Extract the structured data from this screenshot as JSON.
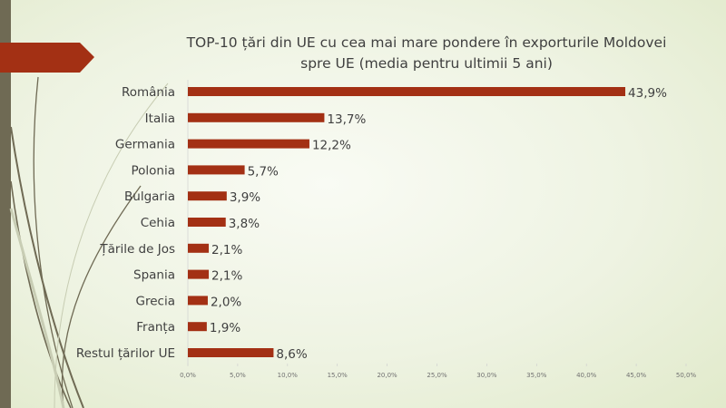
{
  "chart_data": {
    "type": "bar",
    "orientation": "horizontal",
    "title": "TOP-10 țări din UE cu cea mai mare pondere în exporturile Moldovei spre UE (media pentru ultimii 5 ani)",
    "title_lines": [
      "TOP-10 țări din UE cu cea mai mare pondere în exporturile Moldovei",
      "spre UE (media pentru ultimii 5 ani)"
    ],
    "categories": [
      "România",
      "Italia",
      "Germania",
      "Polonia",
      "Bulgaria",
      "Cehia",
      "Țările de Jos",
      "Spania",
      "Grecia",
      "Franța",
      "Restul țărilor UE"
    ],
    "values": [
      43.9,
      13.7,
      12.2,
      5.7,
      3.9,
      3.8,
      2.1,
      2.1,
      2.0,
      1.9,
      8.6
    ],
    "value_labels": [
      "43,9%",
      "13,7%",
      "12,2%",
      "5,7%",
      "3,9%",
      "3,8%",
      "2,1%",
      "2,1%",
      "2,0%",
      "1,9%",
      "8,6%"
    ],
    "xlim": [
      0,
      50
    ],
    "x_ticks": [
      "0,0%",
      "5,0%",
      "10,0%",
      "15,0%",
      "20,0%",
      "25,0%",
      "30,0%",
      "35,0%",
      "40,0%",
      "45,0%",
      "50,0%"
    ],
    "xlabel": "",
    "ylabel": "",
    "grid": false,
    "legend": "none",
    "bar_color": "#a33014"
  },
  "theme": {
    "accent": "#a33014",
    "sidebar": "#6f6a54"
  }
}
